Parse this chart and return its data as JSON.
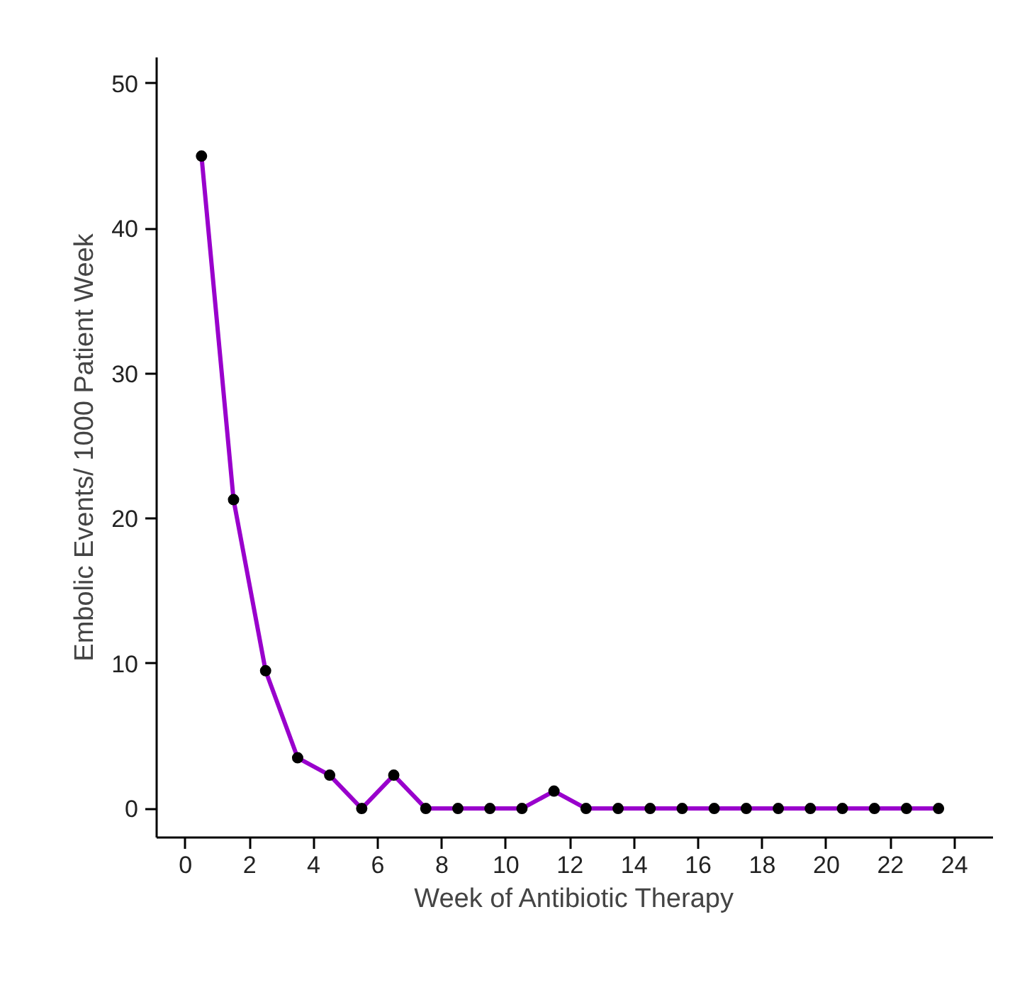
{
  "chart_data": {
    "type": "line",
    "xlabel": "Week of Antibiotic Therapy",
    "ylabel": "Embolic Events/ 1000 Patient Week",
    "x": [
      0.5,
      1.5,
      2.5,
      3.5,
      4.5,
      5.5,
      6.5,
      7.5,
      8.5,
      9.5,
      10.5,
      11.5,
      12.5,
      13.5,
      14.5,
      15.5,
      16.5,
      17.5,
      18.5,
      19.5,
      20.5,
      21.5,
      22.5,
      23.5
    ],
    "series": [
      {
        "color": "#9900cc",
        "values": [
          45,
          21.3,
          9.5,
          3.5,
          2.3,
          0,
          2.3,
          0,
          0,
          0,
          0,
          1.2,
          0,
          0,
          0,
          0,
          0,
          0,
          0,
          0,
          0,
          0,
          0,
          0
        ]
      }
    ],
    "xlim": [
      -0.9,
      25.2
    ],
    "ylim": [
      -2,
      51.8
    ],
    "xticks": [
      0,
      2,
      4,
      6,
      8,
      10,
      12,
      14,
      16,
      18,
      20,
      22,
      24
    ],
    "yticks": [
      0,
      10,
      20,
      30,
      40,
      50
    ],
    "grid": false,
    "marker": "circle",
    "line_style": "solid"
  }
}
